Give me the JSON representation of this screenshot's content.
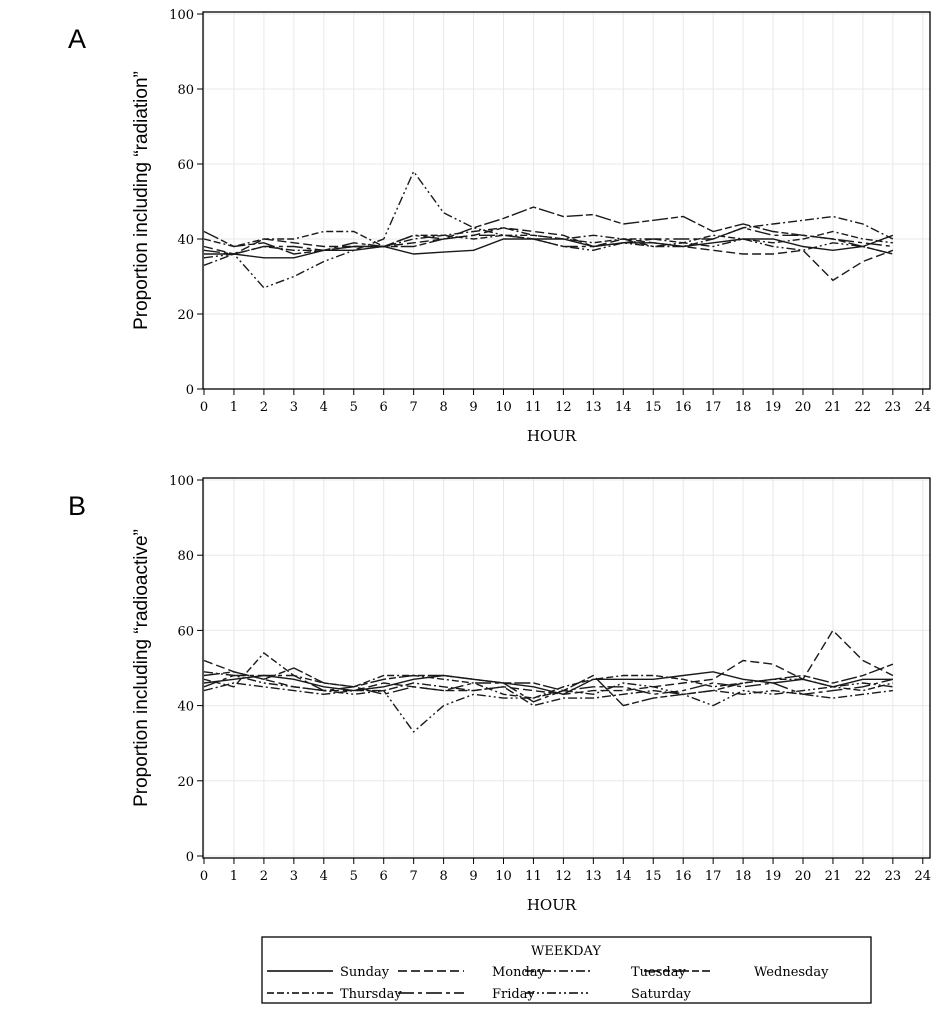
{
  "chart_data": [
    {
      "type": "line",
      "panel": "A",
      "ylabel": "Proportion including “radiation”",
      "xlabel": "HOUR",
      "xlim": [
        0,
        24
      ],
      "ylim": [
        0,
        100
      ],
      "xticks": [
        0,
        1,
        2,
        3,
        4,
        5,
        6,
        7,
        8,
        9,
        10,
        11,
        12,
        13,
        14,
        15,
        16,
        17,
        18,
        19,
        20,
        21,
        22,
        23,
        24
      ],
      "yticks": [
        0,
        20,
        40,
        60,
        80,
        100
      ],
      "grid": true,
      "series": [
        {
          "name": "Sunday",
          "values": [
            36,
            36,
            35,
            35,
            37,
            37,
            38,
            36,
            36.5,
            37,
            40,
            40,
            40,
            38,
            39,
            39,
            38,
            39,
            40,
            40,
            38,
            37,
            38,
            41
          ]
        },
        {
          "name": "Monday",
          "values": [
            38,
            36,
            40,
            39,
            38,
            38,
            38,
            39,
            40,
            41,
            43,
            42,
            41,
            38,
            40,
            39,
            38,
            37,
            36,
            36,
            37,
            29,
            34,
            37
          ]
        },
        {
          "name": "Tuesday",
          "values": [
            33,
            36,
            38,
            37,
            37,
            38,
            38,
            40,
            41,
            42,
            43,
            41,
            40,
            41,
            40,
            38,
            38,
            40,
            43,
            44,
            45,
            46,
            44,
            40
          ]
        },
        {
          "name": "Wednesday",
          "values": [
            42,
            38,
            39,
            36,
            37,
            38,
            38,
            38,
            40,
            43,
            45.5,
            48.5,
            46,
            46.5,
            44,
            45,
            46,
            42,
            44,
            42,
            41,
            40,
            38,
            36
          ]
        },
        {
          "name": "Thursday",
          "values": [
            40,
            38,
            40,
            40,
            42,
            42,
            38,
            41,
            41,
            40,
            41,
            41,
            40,
            39,
            40,
            40,
            39,
            41,
            40,
            39,
            40,
            42,
            40,
            39
          ]
        },
        {
          "name": "Friday",
          "values": [
            37,
            36,
            38,
            38,
            37,
            39,
            38,
            41,
            40,
            41,
            41,
            40,
            38,
            38,
            39,
            40,
            40,
            40,
            43,
            41,
            41,
            40,
            39,
            38
          ]
        },
        {
          "name": "Saturday",
          "values": [
            35,
            36,
            27,
            30,
            34,
            37,
            40,
            58,
            47,
            43,
            41,
            40,
            38,
            37,
            39,
            38,
            39,
            38,
            40,
            38,
            37,
            39,
            38,
            36
          ]
        }
      ]
    },
    {
      "type": "line",
      "panel": "B",
      "ylabel": "Proportion including “radioactive”",
      "xlabel": "HOUR",
      "xlim": [
        0,
        24
      ],
      "ylim": [
        0,
        100
      ],
      "xticks": [
        0,
        1,
        2,
        3,
        4,
        5,
        6,
        7,
        8,
        9,
        10,
        11,
        12,
        13,
        14,
        15,
        16,
        17,
        18,
        19,
        20,
        21,
        22,
        23,
        24
      ],
      "yticks": [
        0,
        20,
        40,
        60,
        80,
        100
      ],
      "grid": true,
      "series": [
        {
          "name": "Sunday",
          "values": [
            46,
            47,
            48,
            47,
            45,
            44,
            45,
            47,
            48,
            47,
            46,
            45,
            43,
            47,
            47,
            47,
            48,
            49,
            47,
            46,
            47,
            45,
            47,
            47
          ]
        },
        {
          "name": "Monday",
          "values": [
            52,
            49,
            47,
            45,
            44,
            44,
            46,
            45,
            44,
            44,
            45,
            44,
            43,
            44,
            44,
            45,
            46,
            47,
            52,
            51,
            47,
            60,
            52,
            48
          ]
        },
        {
          "name": "Tuesday",
          "values": [
            44,
            46,
            45,
            44,
            43,
            44,
            44,
            46,
            45,
            44,
            45,
            40,
            42,
            42,
            43,
            44,
            43,
            44,
            43,
            44,
            43,
            42,
            43,
            44
          ]
        },
        {
          "name": "Wednesday",
          "values": [
            48,
            49,
            47,
            50,
            46,
            45,
            47,
            48,
            48,
            47,
            46,
            46,
            44,
            48,
            40,
            42,
            43,
            44,
            46,
            47,
            48,
            46,
            48,
            51
          ]
        },
        {
          "name": "Thursday",
          "values": [
            47,
            45,
            54,
            48,
            46,
            45,
            48,
            48,
            47,
            46,
            43,
            42,
            45,
            47,
            48,
            48,
            47,
            45,
            46,
            47,
            47,
            45,
            44,
            46
          ]
        },
        {
          "name": "Friday",
          "values": [
            45,
            48,
            48,
            48,
            44,
            45,
            43,
            45,
            44,
            46,
            46,
            41,
            44,
            45,
            45,
            43,
            44,
            46,
            45,
            46,
            43,
            44,
            45,
            47
          ]
        },
        {
          "name": "Saturday",
          "values": [
            49,
            48,
            46,
            45,
            44,
            43,
            44,
            33,
            40,
            43,
            42,
            42,
            44,
            43,
            46,
            45,
            43,
            40,
            44,
            43,
            44,
            45,
            46,
            45
          ]
        }
      ]
    }
  ],
  "panels": {
    "A": "A",
    "B": "B"
  },
  "legend": {
    "title": "WEEKDAY",
    "items": [
      "Sunday",
      "Monday",
      "Tuesday",
      "Wednesday",
      "Thursday",
      "Friday",
      "Saturday"
    ]
  },
  "colors": {
    "line": "#1a1a1a",
    "grid": "#e8e8e8"
  }
}
